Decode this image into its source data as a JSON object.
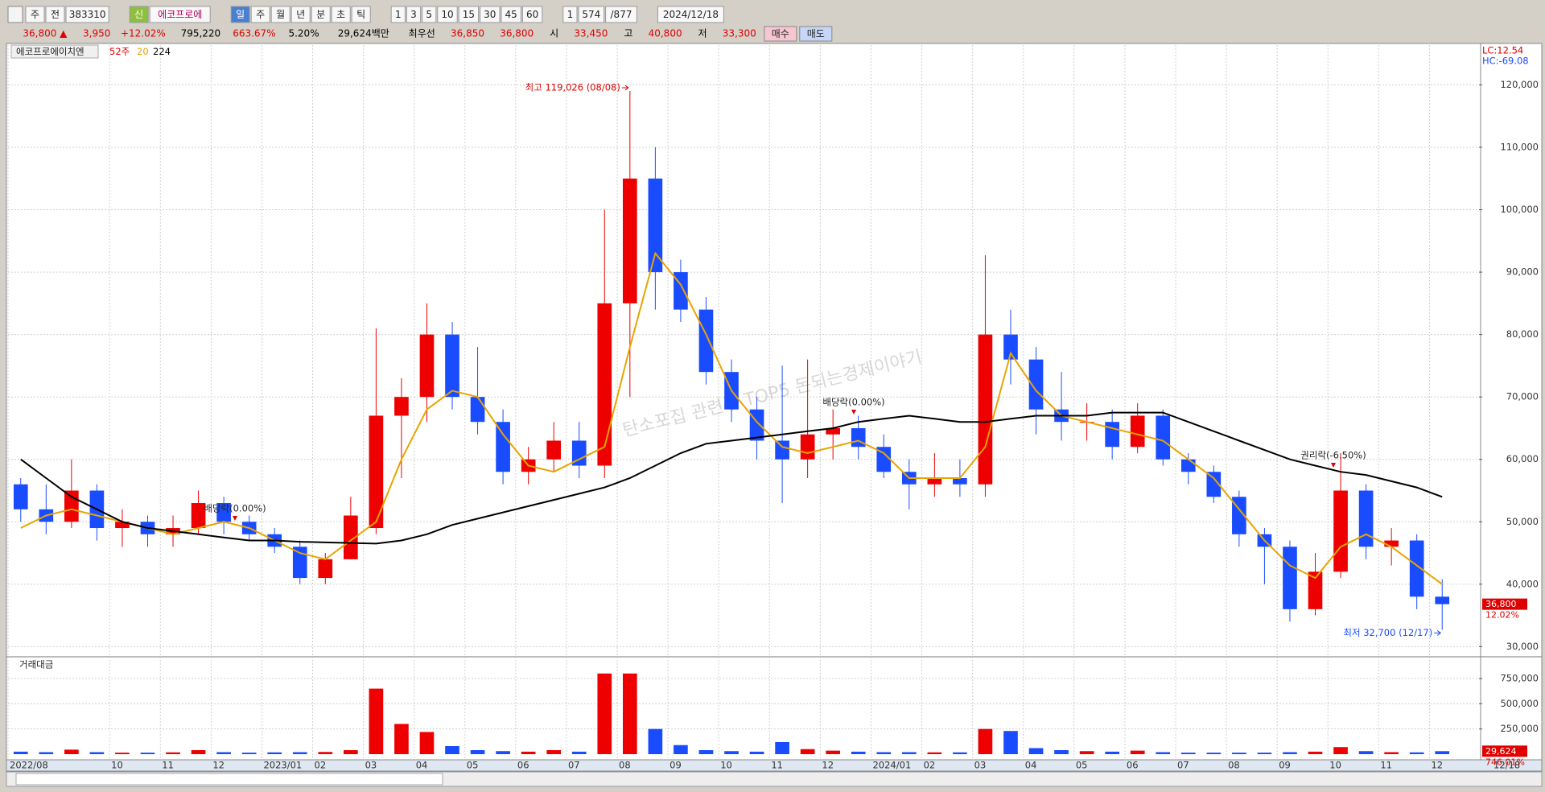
{
  "toolbar": {
    "row1": [
      "주",
      "전",
      "383310",
      "신",
      "에코프로에",
      "일",
      "주",
      "월",
      "년",
      "분",
      "초",
      "틱",
      "1",
      "3",
      "5",
      "10",
      "15",
      "30",
      "45",
      "60",
      "1",
      "574",
      "/877",
      "2024/12/18"
    ],
    "quote": [
      {
        "text": "36,800 ▲",
        "color": "#e00000"
      },
      {
        "text": "3,950",
        "color": "#e00000"
      },
      {
        "text": "+12.02%",
        "color": "#e00000"
      },
      {
        "text": "795,220",
        "color": "#000000"
      },
      {
        "text": "663.67%",
        "color": "#e00000"
      },
      {
        "text": "5.20%",
        "color": "#000000"
      },
      {
        "text": "29,624백만",
        "color": "#000000"
      },
      {
        "text": "최우선",
        "color": "#000000"
      },
      {
        "text": "36,850",
        "color": "#e00000"
      },
      {
        "text": "36,800",
        "color": "#e00000"
      },
      {
        "text": "시",
        "color": "#000000"
      },
      {
        "text": "33,450",
        "color": "#e00000"
      },
      {
        "text": "고",
        "color": "#000000"
      },
      {
        "text": "40,800",
        "color": "#e00000"
      },
      {
        "text": "저",
        "color": "#000000"
      },
      {
        "text": "33,300",
        "color": "#e00000"
      }
    ],
    "buy": "매수",
    "sell": "매도"
  },
  "chart_data": [
    {
      "type": "candlestick",
      "name": "에코프로에이치엔",
      "period": "52주",
      "lc": "LC:12.54",
      "hc": "HC:-69.08",
      "categories": [
        "2022/08",
        null,
        null,
        null,
        "10",
        null,
        "11",
        null,
        "12",
        null,
        "2023/01",
        null,
        "02",
        null,
        "03",
        null,
        "04",
        null,
        "05",
        null,
        "06",
        null,
        "07",
        null,
        "08",
        null,
        "09",
        null,
        "10",
        null,
        "11",
        null,
        "12",
        null,
        "2024/01",
        null,
        "02",
        null,
        "03",
        null,
        "04",
        null,
        "05",
        null,
        "06",
        null,
        "07",
        null,
        "08",
        null,
        "09",
        null,
        "10",
        null,
        "11",
        null,
        "12"
      ],
      "last_date": "12/18",
      "open": [
        56000,
        52000,
        50000,
        55000,
        49000,
        50000,
        48000,
        49000,
        53000,
        50000,
        48000,
        46000,
        41000,
        44000,
        49000,
        67000,
        70000,
        80000,
        70000,
        66000,
        58000,
        60000,
        63000,
        59000,
        85000,
        105000,
        90000,
        84000,
        74000,
        68000,
        63000,
        60000,
        64000,
        65000,
        62000,
        58000,
        56000,
        57000,
        56000,
        80000,
        76000,
        68000,
        66000,
        66000,
        62000,
        67000,
        60000,
        58000,
        54000,
        48000,
        46000,
        36000,
        42000,
        55000,
        46000,
        47000,
        38000
      ],
      "high": [
        57000,
        56000,
        60000,
        56000,
        52000,
        51000,
        51000,
        55000,
        54000,
        51000,
        49000,
        47000,
        45000,
        54000,
        81000,
        73000,
        85000,
        82000,
        78000,
        68000,
        62000,
        66000,
        66000,
        100000,
        119026,
        110000,
        92000,
        86000,
        76000,
        70000,
        75000,
        76000,
        68000,
        67000,
        64000,
        60000,
        61000,
        60000,
        92700,
        84000,
        78000,
        74000,
        69000,
        68000,
        69000,
        68000,
        61000,
        59000,
        55000,
        49000,
        47000,
        45000,
        61000,
        56000,
        49000,
        48000,
        40800
      ],
      "low": [
        50000,
        48000,
        49000,
        47000,
        46000,
        46000,
        46000,
        48000,
        48000,
        47000,
        45000,
        40000,
        40000,
        44000,
        48000,
        57000,
        66000,
        68000,
        64000,
        56000,
        56000,
        58000,
        57000,
        57000,
        70000,
        84000,
        82000,
        72000,
        66000,
        60000,
        53000,
        57000,
        60000,
        60000,
        57000,
        52000,
        54000,
        54000,
        54000,
        72000,
        64000,
        63000,
        63000,
        60000,
        61000,
        59000,
        56000,
        53000,
        46000,
        40000,
        34000,
        35000,
        41000,
        44000,
        43000,
        36000,
        32700
      ],
      "close": [
        52000,
        50000,
        55000,
        49000,
        50000,
        48000,
        49000,
        53000,
        50000,
        48000,
        46000,
        41000,
        44000,
        51000,
        67000,
        70000,
        80000,
        70000,
        66000,
        58000,
        60000,
        63000,
        59000,
        85000,
        105000,
        90000,
        84000,
        74000,
        68000,
        63000,
        60000,
        64000,
        65000,
        62000,
        58000,
        56000,
        57000,
        56000,
        80000,
        76000,
        68000,
        66000,
        66000,
        62000,
        67000,
        60000,
        58000,
        54000,
        48000,
        46000,
        36000,
        42000,
        55000,
        46000,
        47000,
        38000,
        36800
      ],
      "up_color": "#ee0000",
      "down_color": "#1a4cff",
      "series": [
        {
          "name": "20",
          "color": "#e8a400",
          "values": [
            49000,
            51000,
            52000,
            51000,
            50000,
            49000,
            48000,
            49000,
            50000,
            49000,
            47000,
            45000,
            44000,
            47000,
            50000,
            60000,
            68000,
            71000,
            70000,
            64000,
            59000,
            58000,
            60000,
            62000,
            78000,
            93000,
            88000,
            80000,
            71000,
            66000,
            62000,
            61000,
            62000,
            63000,
            61000,
            57000,
            57000,
            57000,
            62000,
            77000,
            71000,
            67000,
            66000,
            65000,
            64000,
            63000,
            60000,
            57000,
            52000,
            47000,
            43000,
            41000,
            46000,
            48000,
            46000,
            43000,
            40000
          ]
        },
        {
          "name": "224",
          "color": "#000000",
          "values": [
            60000,
            57000,
            54000,
            52000,
            50000,
            49000,
            48500,
            48000,
            47500,
            47000,
            47000,
            46800,
            46700,
            46600,
            46500,
            47000,
            48000,
            49500,
            50500,
            51500,
            52500,
            53500,
            54500,
            55500,
            57000,
            59000,
            61000,
            62500,
            63000,
            63500,
            64000,
            64500,
            65000,
            66000,
            66500,
            67000,
            66500,
            66000,
            66000,
            66500,
            67000,
            67000,
            67000,
            67500,
            67500,
            67500,
            66000,
            64500,
            63000,
            61500,
            60000,
            59000,
            58000,
            57500,
            56500,
            55500,
            54000
          ]
        }
      ],
      "ylim": [
        28500,
        123800
      ],
      "yticks": [
        {
          "value": 30000,
          "label": "30,000"
        },
        {
          "value": 40000,
          "label": "40,000"
        },
        {
          "value": 50000,
          "label": "50,000"
        },
        {
          "value": 60000,
          "label": "60,000"
        },
        {
          "value": 70000,
          "label": "70,000"
        },
        {
          "value": 80000,
          "label": "80,000"
        },
        {
          "value": 90000,
          "label": "90,000"
        },
        {
          "value": 100000,
          "label": "100,000"
        },
        {
          "value": 110000,
          "label": "110,000"
        },
        {
          "value": 120000,
          "label": "120,000"
        }
      ],
      "grid": true,
      "high_label": "최고 119,026 (08/08)",
      "low_label": "최저 32,700 (12/17)",
      "events": [
        "배당락(0.00%)",
        "배당락(0.00%)",
        "권리락(-6.50%)"
      ],
      "watermark": "탄소포집 관련주 TOP5 돈되는경제이야기",
      "price_tag": {
        "value": 36800,
        "label": "36,800"
      },
      "change_tag": "12.02%"
    },
    {
      "type": "bar",
      "title": "거래대금",
      "values": [
        25000,
        20000,
        45000,
        20000,
        15000,
        15000,
        18000,
        40000,
        20000,
        15000,
        18000,
        20000,
        22000,
        40000,
        650000,
        300000,
        220000,
        80000,
        40000,
        30000,
        25000,
        40000,
        25000,
        800000,
        800000,
        250000,
        90000,
        40000,
        30000,
        25000,
        120000,
        50000,
        35000,
        25000,
        20000,
        20000,
        18000,
        18000,
        250000,
        230000,
        60000,
        40000,
        30000,
        25000,
        35000,
        20000,
        15000,
        15000,
        15000,
        15000,
        20000,
        25000,
        70000,
        30000,
        20000,
        18000,
        29624
      ],
      "ylim": [
        0,
        950000
      ],
      "yticks": [
        {
          "value": 250000,
          "label": "250,000"
        },
        {
          "value": 500000,
          "label": "500,000"
        },
        {
          "value": 750000,
          "label": "750,000"
        }
      ],
      "grid": true,
      "price_tag": {
        "value": 29624,
        "label": "29,624"
      },
      "change_tag": "746.01%"
    }
  ]
}
